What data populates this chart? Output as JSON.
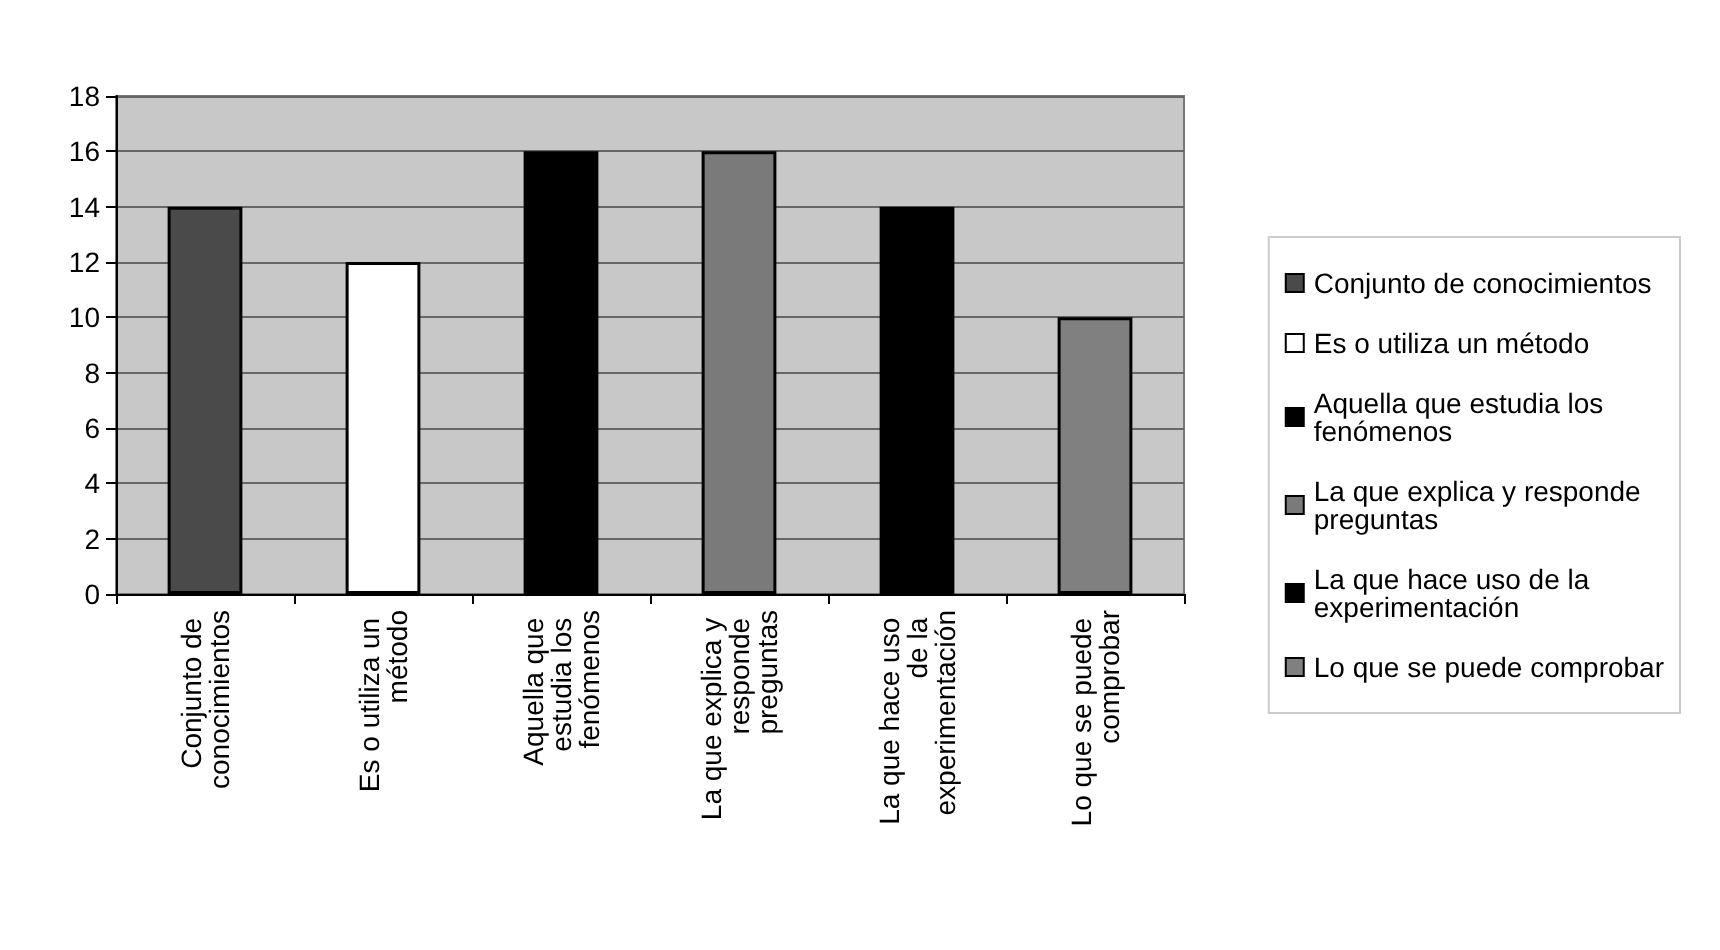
{
  "chart_data": {
    "type": "bar",
    "categories": [
      "Conjunto de conocimientos",
      "Es o utiliza un método",
      "Aquella que estudia los fenómenos",
      "La que explica y responde preguntas",
      "La que hace uso de la experimentación",
      "Lo que se puede comprobar"
    ],
    "series": [
      {
        "name": "Conjunto de conocimientos",
        "color": "#4a4a4a",
        "values": [
          14,
          null,
          null,
          null,
          null,
          null
        ]
      },
      {
        "name": "Es o utiliza un método",
        "color": "#ffffff",
        "values": [
          null,
          12,
          null,
          null,
          null,
          null
        ]
      },
      {
        "name": "Aquella que estudia los fenómenos",
        "color": "#000000",
        "values": [
          null,
          null,
          16,
          null,
          null,
          null
        ]
      },
      {
        "name": "La que explica y responde preguntas",
        "color": "#7a7a7a",
        "values": [
          null,
          null,
          null,
          16,
          null,
          null
        ]
      },
      {
        "name": "La que hace uso de la experimentación",
        "color": "#000000",
        "values": [
          null,
          null,
          null,
          null,
          14,
          null
        ]
      },
      {
        "name": "Lo que se puede comprobar",
        "color": "#808080",
        "values": [
          null,
          null,
          null,
          null,
          null,
          10
        ]
      }
    ],
    "ylim": [
      0,
      18
    ],
    "yticks": [
      0,
      2,
      4,
      6,
      8,
      10,
      12,
      14,
      16,
      18
    ],
    "grid": "y",
    "legend": "right"
  }
}
